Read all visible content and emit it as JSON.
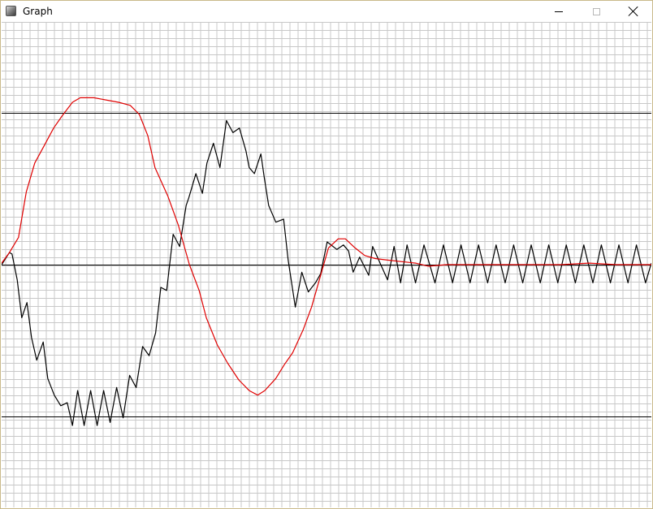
{
  "window": {
    "title": "Graph",
    "controls": [
      "minimize",
      "maximize",
      "close"
    ],
    "icon": "app-icon"
  },
  "colors": {
    "grid": "#c8c8c8",
    "reference_line": "#000000",
    "input_series": "#000000",
    "output_series": "#e00000"
  },
  "chart_data": {
    "type": "line",
    "grid": true,
    "xlim": [
      0,
      100
    ],
    "ylim": [
      -1.6,
      1.6
    ],
    "reference_lines": [
      1,
      0,
      -1
    ],
    "series": [
      {
        "key": "black",
        "color": "#000000",
        "x": [
          0,
          1.2,
          1.6,
          2.4,
          3.1,
          3.9,
          4.6,
          5.4,
          6.4,
          7.1,
          8.1,
          9.1,
          10.1,
          10.9,
          11.7,
          12.7,
          13.7,
          14.7,
          15.7,
          16.7,
          17.7,
          18.7,
          19.7,
          20.7,
          21.7,
          22.7,
          23.7,
          24.5,
          25.4,
          26.4,
          27.4,
          28.4,
          28.8,
          29.9,
          30.9,
          31.6,
          32.6,
          33.6,
          34.6,
          35.6,
          36.6,
          37.6,
          38.1,
          38.9,
          39.9,
          40.4,
          41.1,
          42.2,
          43.4,
          44.1,
          45.2,
          46.2,
          47.2,
          48.3,
          49.1,
          50.1,
          51.6,
          52.6,
          53.4,
          54.1,
          55.1,
          56.5,
          57.1,
          59.4,
          60.4,
          61.4,
          62.4,
          63.7,
          65.0,
          66.7,
          68.0,
          69.4,
          70.7,
          72.1,
          73.4,
          74.8,
          76.1,
          77.5,
          78.8,
          80.2,
          81.5,
          82.9,
          84.2,
          85.6,
          86.9,
          88.3,
          89.6,
          91.0,
          92.3,
          93.7,
          95.0,
          96.4,
          97.7,
          99.1,
          100
        ],
        "y": [
          0,
          0.08,
          0.07,
          -0.1,
          -0.35,
          -0.25,
          -0.48,
          -0.63,
          -0.51,
          -0.75,
          -0.86,
          -0.93,
          -0.91,
          -1.06,
          -0.83,
          -1.06,
          -0.83,
          -1.06,
          -0.83,
          -1.04,
          -0.81,
          -1.01,
          -0.73,
          -0.81,
          -0.54,
          -0.6,
          -0.45,
          -0.15,
          -0.17,
          0.2,
          0.12,
          0.39,
          0.44,
          0.6,
          0.47,
          0.67,
          0.8,
          0.64,
          0.95,
          0.87,
          0.9,
          0.75,
          0.64,
          0.6,
          0.73,
          0.58,
          0.39,
          0.28,
          0.3,
          0.03,
          -0.28,
          -0.05,
          -0.18,
          -0.12,
          -0.06,
          0.15,
          0.1,
          0.13,
          0.09,
          -0.05,
          0.05,
          -0.07,
          0.12,
          -0.1,
          0.12,
          -0.12,
          0.13,
          -0.12,
          0.13,
          -0.12,
          0.13,
          -0.12,
          0.13,
          -0.12,
          0.13,
          -0.12,
          0.13,
          -0.12,
          0.13,
          -0.12,
          0.13,
          -0.12,
          0.13,
          -0.12,
          0.13,
          -0.12,
          0.13,
          -0.12,
          0.13,
          -0.12,
          0.13,
          -0.12,
          0.13,
          -0.12,
          0.01
        ]
      },
      {
        "key": "red",
        "color": "#e00000",
        "x": [
          0,
          1.2,
          2.6,
          3.8,
          5.1,
          6.5,
          8.0,
          9.3,
          10.9,
          12.1,
          13.4,
          14.2,
          15.5,
          18.0,
          19.8,
          21.2,
          22.5,
          23.6,
          25.6,
          27.2,
          28.9,
          30.4,
          31.5,
          33.2,
          34.8,
          36.5,
          38.1,
          39.4,
          40.5,
          42.2,
          43.5,
          44.8,
          46.4,
          47.7,
          49.1,
          50.3,
          51.8,
          52.9,
          54.4,
          55.9,
          57.5,
          59.4,
          61.6,
          63.7,
          65.7,
          68.5,
          72.9,
          77.3,
          81.8,
          86.1,
          90.4,
          94.6,
          100
        ],
        "y": [
          0.01,
          0.08,
          0.18,
          0.48,
          0.67,
          0.78,
          0.9,
          0.98,
          1.07,
          1.1,
          1.1,
          1.1,
          1.09,
          1.07,
          1.05,
          0.99,
          0.85,
          0.64,
          0.45,
          0.26,
          0.0,
          -0.17,
          -0.35,
          -0.53,
          -0.65,
          -0.76,
          -0.83,
          -0.86,
          -0.83,
          -0.75,
          -0.66,
          -0.58,
          -0.43,
          -0.28,
          -0.07,
          0.11,
          0.17,
          0.17,
          0.11,
          0.06,
          0.04,
          0.03,
          0.02,
          0.01,
          -0.01,
          0.0,
          0.0,
          0.0,
          0.0,
          0.0,
          0.01,
          0.0,
          0.0
        ]
      }
    ]
  }
}
